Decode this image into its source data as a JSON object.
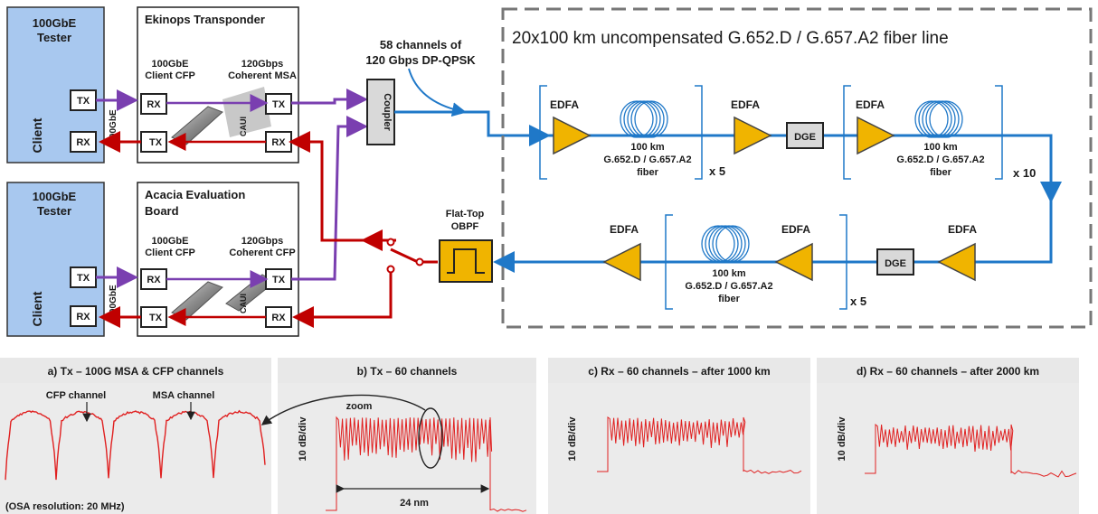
{
  "testers": [
    {
      "title_line1": "100GbE",
      "title_line2": "Tester",
      "client": "Client",
      "tx": "TX",
      "rx": "RX"
    },
    {
      "title_line1": "100GbE",
      "title_line2": "Tester",
      "client": "Client",
      "tx": "TX",
      "rx": "RX"
    }
  ],
  "transponders": [
    {
      "title_line1": "Ekinops Transponder",
      "title_line2": "",
      "client_line1": "100GbE",
      "client_line2": "Client CFP",
      "coherent_line1": "120Gbps",
      "coherent_line2": "Coherent MSA",
      "rx_left": "RX",
      "tx_left": "TX",
      "tx_right": "TX",
      "rx_right": "RX",
      "caui": "CAUI"
    },
    {
      "title_line1": "Acacia Evaluation",
      "title_line2": "Board",
      "client_line1": "100GbE",
      "client_line2": "Client CFP",
      "coherent_line1": "120Gbps",
      "coherent_line2": "Coherent CFP",
      "rx_left": "RX",
      "tx_left": "TX",
      "tx_right": "TX",
      "rx_right": "RX",
      "caui": "CAUI"
    }
  ],
  "link_label": "100GbE",
  "coupler": "Coupler",
  "channels_line1": "58 channels of",
  "channels_line2": "120 Gbps DP-QPSK",
  "fiber_line_title": "20x100 km uncompensated G.652.D / G.657.A2 fiber line",
  "edfa": "EDFA",
  "dge": "DGE",
  "fiber_line1": "100 km",
  "fiber_line2": "G.652.D / G.657.A2",
  "fiber_line3": "fiber",
  "repeat_x5": "x 5",
  "repeat_x10": "x 10",
  "obpf_line1": "Flat-Top",
  "obpf_line2": "OBPF",
  "panels": [
    {
      "title": "a) Tx – 100G MSA & CFP channels",
      "ann1": "CFP channel",
      "ann2": "MSA channel",
      "footer": "(OSA resolution:  20 MHz)"
    },
    {
      "title": "b) Tx – 60 channels",
      "ylabel": "10 dB/div",
      "zoom": "zoom",
      "span": "24 nm"
    },
    {
      "title": "c) Rx – 60 channels  – after 1000 km",
      "ylabel": "10 dB/div"
    },
    {
      "title": "d) Rx – 60 channels  – after 2000 km",
      "ylabel": "10 dB/div"
    }
  ],
  "colors": {
    "tester": "#a8c8ef",
    "purple": "#7a3fb0",
    "red": "#c00000",
    "blue": "#1f78c8",
    "amplifier": "#f0b400",
    "trace": "#e02020",
    "panel_bg": "#e8e8e8"
  }
}
